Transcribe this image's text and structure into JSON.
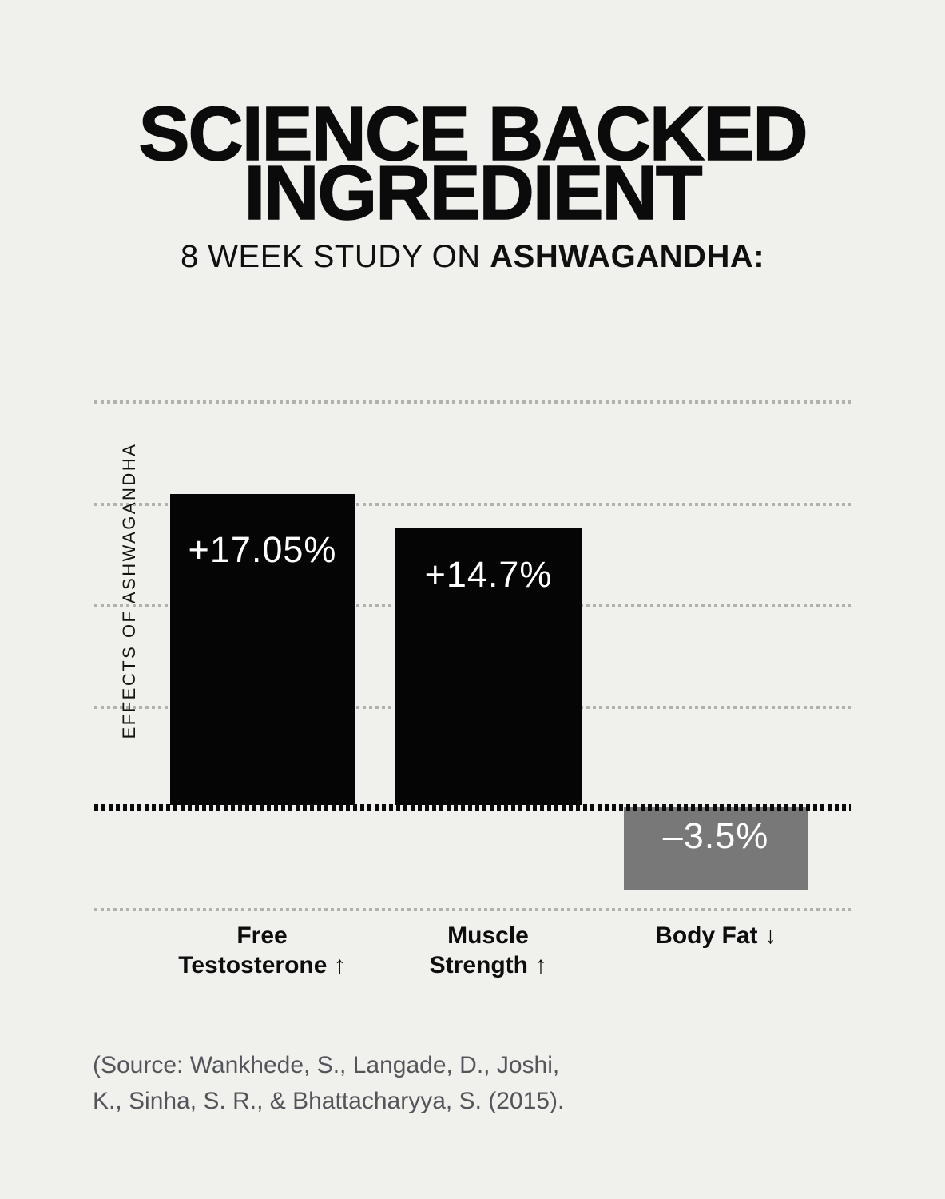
{
  "header": {
    "title_line1": "SCIENCE BACKED",
    "title_line2": "INGREDIENT",
    "subtitle_prefix": "8 WEEK STUDY ON ",
    "subtitle_bold": "ASHWAGANDHA:"
  },
  "chart_data": {
    "type": "bar",
    "title": "8 week study on Ashwagandha",
    "ylabel": "EFFECTS OF ASHWAGANDHA",
    "xlabel": "",
    "categories": [
      "Free Testosterone ↑",
      "Muscle Strength ↑",
      "Body Fat ↓"
    ],
    "values": [
      17.05,
      14.7,
      -3.5
    ],
    "value_labels": [
      "+17.05%",
      "+14.7%",
      "–3.5%"
    ],
    "bar_colors": [
      "#050505",
      "#050505",
      "#787878"
    ],
    "baseline": 0,
    "grid": "dotted horizontal gridlines, bold dotted zero baseline",
    "legend": "none"
  },
  "bars": [
    {
      "value_label": "+17.05%",
      "category_line1": "Free",
      "category_line2": "Testosterone ↑"
    },
    {
      "value_label": "+14.7%",
      "category_line1": "Muscle",
      "category_line2": "Strength ↑"
    },
    {
      "value_label": "–3.5%",
      "category_line1": "Body Fat ↓",
      "category_line2": ""
    }
  ],
  "source": {
    "line1": "(Source: Wankhede, S., Langade, D., Joshi,",
    "line2": "K., Sinha, S. R., & Bhattacharyya, S. (2015)."
  },
  "colors": {
    "background": "#f0f1ec",
    "bar_black": "#050505",
    "bar_gray": "#787878",
    "grid_dot": "#b2b2ad",
    "baseline_dot": "#0a0a0a",
    "title_text": "#0b0b0b",
    "value_text": "#ffffff",
    "source_text": "#53555a"
  }
}
